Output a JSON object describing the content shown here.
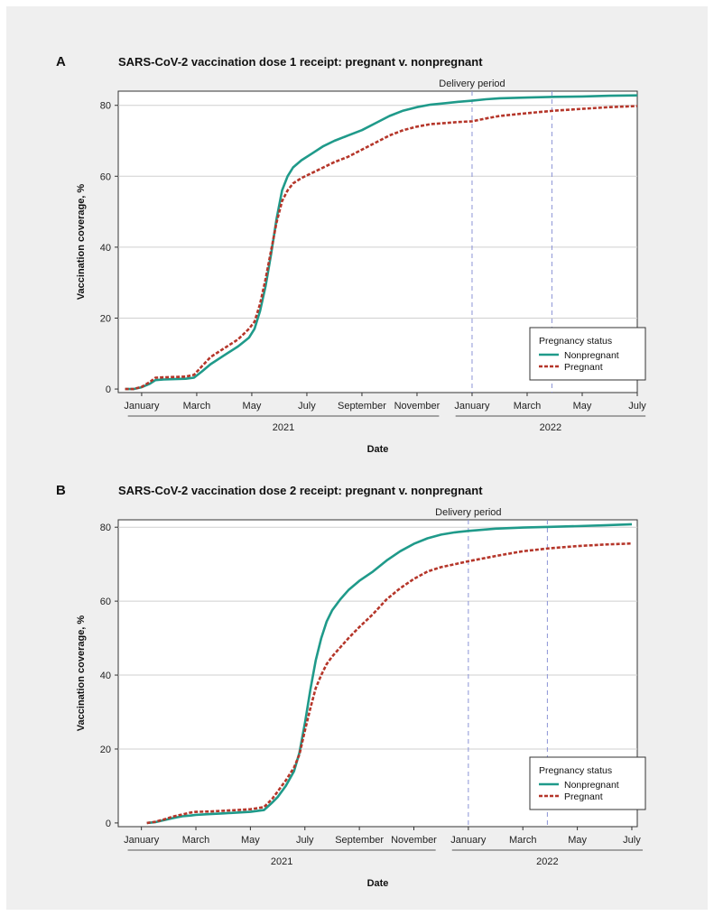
{
  "colors": {
    "nonpregnant": "#1f9a8a",
    "pregnant": "#b5362a",
    "delivery_line": "#8b93d6",
    "gridline": "#cfcfcf",
    "panel_bg": "#efefef"
  },
  "chart_data": [
    {
      "panel_label": "A",
      "type": "line",
      "title": "SARS-CoV-2 vaccination dose 1 receipt: pregnant v. nonpregnant",
      "xlabel": "Date",
      "ylabel": "Vaccination coverage, %",
      "x_unit": "months since 2021-01-01",
      "xlim": [
        -0.85,
        18
      ],
      "ylim": [
        -1,
        84
      ],
      "yticks": [
        0,
        20,
        40,
        60,
        80
      ],
      "xticks": [
        {
          "label": "January",
          "x": 0
        },
        {
          "label": "March",
          "x": 2
        },
        {
          "label": "May",
          "x": 4
        },
        {
          "label": "July",
          "x": 6
        },
        {
          "label": "September",
          "x": 8
        },
        {
          "label": "November",
          "x": 10
        },
        {
          "label": "January",
          "x": 12
        },
        {
          "label": "March",
          "x": 14
        },
        {
          "label": "May",
          "x": 16
        },
        {
          "label": "July",
          "x": 18
        }
      ],
      "year_groups": [
        {
          "label": "2021",
          "from": -0.5,
          "to": 10.8
        },
        {
          "label": "2022",
          "from": 11.4,
          "to": 18.3
        }
      ],
      "delivery_period": {
        "label": "Delivery period",
        "start": 12,
        "end": 14.9
      },
      "legend": {
        "title": "Pregnancy status",
        "position": "bottom-right"
      },
      "series": [
        {
          "name": "Nonpregnant",
          "style": "solid",
          "color": "#1f9a8a",
          "x": [
            -0.6,
            -0.3,
            0,
            0.3,
            0.5,
            0.8,
            1.2,
            1.6,
            1.9,
            2.2,
            2.5,
            3.0,
            3.5,
            3.9,
            4.1,
            4.3,
            4.5,
            4.7,
            4.9,
            5.1,
            5.3,
            5.5,
            5.8,
            6.2,
            6.6,
            7.0,
            7.5,
            8.0,
            8.5,
            9.0,
            9.5,
            10.0,
            10.5,
            11.0,
            11.5,
            12.0,
            12.5,
            13.0,
            14.0,
            15.0,
            16.0,
            17.0,
            18.0
          ],
          "values": [
            0,
            0,
            0.5,
            1.5,
            2.5,
            2.7,
            2.8,
            2.9,
            3.2,
            5.0,
            7.0,
            9.5,
            12.0,
            14.5,
            17.0,
            22.0,
            29.0,
            38.0,
            48.0,
            56.0,
            60.0,
            62.5,
            64.5,
            66.5,
            68.5,
            70.0,
            71.5,
            73.0,
            75.0,
            77.0,
            78.5,
            79.5,
            80.2,
            80.6,
            81.0,
            81.3,
            81.7,
            82.0,
            82.2,
            82.4,
            82.5,
            82.7,
            82.8
          ]
        },
        {
          "name": "Pregnant",
          "style": "dashed",
          "color": "#b5362a",
          "x": [
            -0.6,
            -0.3,
            0,
            0.3,
            0.5,
            0.8,
            1.2,
            1.6,
            1.9,
            2.2,
            2.5,
            3.0,
            3.5,
            3.9,
            4.1,
            4.3,
            4.5,
            4.7,
            4.9,
            5.1,
            5.3,
            5.5,
            5.8,
            6.2,
            6.6,
            7.0,
            7.5,
            8.0,
            8.5,
            9.0,
            9.5,
            10.0,
            10.5,
            11.0,
            11.5,
            12.0,
            12.5,
            13.0,
            14.0,
            15.0,
            16.0,
            17.0,
            18.0
          ],
          "values": [
            0,
            0,
            0.6,
            2.0,
            3.2,
            3.3,
            3.4,
            3.5,
            4.0,
            6.5,
            9.0,
            11.5,
            14.0,
            17.0,
            19.0,
            24.0,
            31.0,
            39.0,
            47.0,
            53.0,
            56.0,
            58.0,
            59.5,
            61.0,
            62.5,
            64.0,
            65.5,
            67.5,
            69.5,
            71.5,
            73.0,
            74.0,
            74.7,
            75.0,
            75.3,
            75.5,
            76.3,
            77.0,
            77.8,
            78.5,
            79.0,
            79.5,
            79.8
          ]
        }
      ]
    },
    {
      "panel_label": "B",
      "type": "line",
      "title": "SARS-CoV-2 vaccination dose 2 receipt: pregnant v. nonpregnant",
      "xlabel": "Date",
      "ylabel": "Vaccination coverage, %",
      "x_unit": "months since 2021-01-01",
      "xlim": [
        -0.85,
        18.2
      ],
      "ylim": [
        -1,
        82
      ],
      "yticks": [
        0,
        20,
        40,
        60,
        80
      ],
      "xticks": [
        {
          "label": "January",
          "x": 0
        },
        {
          "label": "March",
          "x": 2
        },
        {
          "label": "May",
          "x": 4
        },
        {
          "label": "July",
          "x": 6
        },
        {
          "label": "September",
          "x": 8
        },
        {
          "label": "November",
          "x": 10
        },
        {
          "label": "January",
          "x": 12
        },
        {
          "label": "March",
          "x": 14
        },
        {
          "label": "May",
          "x": 16
        },
        {
          "label": "July",
          "x": 18
        }
      ],
      "year_groups": [
        {
          "label": "2021",
          "from": -0.5,
          "to": 10.8
        },
        {
          "label": "2022",
          "from": 11.4,
          "to": 18.4
        }
      ],
      "delivery_period": {
        "label": "Delivery period",
        "start": 12,
        "end": 14.9
      },
      "legend": {
        "title": "Pregnancy status",
        "position": "bottom-right"
      },
      "series": [
        {
          "name": "Nonpregnant",
          "style": "solid",
          "color": "#1f9a8a",
          "x": [
            0.2,
            0.5,
            0.8,
            1.2,
            1.5,
            1.8,
            2.0,
            2.5,
            3.0,
            3.5,
            4.0,
            4.5,
            4.8,
            5.0,
            5.3,
            5.6,
            5.8,
            6.0,
            6.2,
            6.4,
            6.6,
            6.8,
            7.0,
            7.3,
            7.6,
            8.0,
            8.5,
            9.0,
            9.5,
            10.0,
            10.5,
            11.0,
            11.5,
            12.0,
            12.5,
            13.0,
            14.0,
            15.0,
            16.0,
            17.0,
            18.0
          ],
          "values": [
            0,
            0.2,
            0.7,
            1.4,
            1.8,
            2.0,
            2.2,
            2.4,
            2.6,
            2.8,
            3.0,
            3.5,
            5.5,
            7.0,
            10.0,
            14.0,
            19.0,
            27.0,
            36.0,
            44.0,
            50.0,
            54.5,
            57.5,
            60.5,
            63.0,
            65.5,
            68.0,
            71.0,
            73.5,
            75.5,
            77.0,
            78.0,
            78.6,
            79.0,
            79.3,
            79.6,
            79.9,
            80.1,
            80.3,
            80.5,
            80.8
          ]
        },
        {
          "name": "Pregnant",
          "style": "dashed",
          "color": "#b5362a",
          "x": [
            0.2,
            0.5,
            0.8,
            1.2,
            1.5,
            1.8,
            2.0,
            2.5,
            3.0,
            3.5,
            4.0,
            4.5,
            4.8,
            5.0,
            5.3,
            5.6,
            5.8,
            6.0,
            6.2,
            6.4,
            6.6,
            6.8,
            7.0,
            7.3,
            7.6,
            8.0,
            8.5,
            9.0,
            9.5,
            10.0,
            10.5,
            11.0,
            11.5,
            12.0,
            12.5,
            13.0,
            14.0,
            15.0,
            16.0,
            17.0,
            18.0
          ],
          "values": [
            0,
            0.3,
            0.9,
            1.8,
            2.3,
            2.8,
            3.0,
            3.1,
            3.3,
            3.5,
            3.7,
            4.3,
            6.5,
            8.5,
            11.5,
            15.0,
            18.5,
            25.0,
            31.0,
            36.5,
            40.0,
            43.0,
            45.0,
            47.5,
            50.0,
            53.0,
            56.5,
            60.5,
            63.5,
            66.0,
            68.0,
            69.2,
            70.0,
            70.8,
            71.5,
            72.2,
            73.5,
            74.3,
            74.9,
            75.3,
            75.6
          ]
        }
      ]
    }
  ]
}
